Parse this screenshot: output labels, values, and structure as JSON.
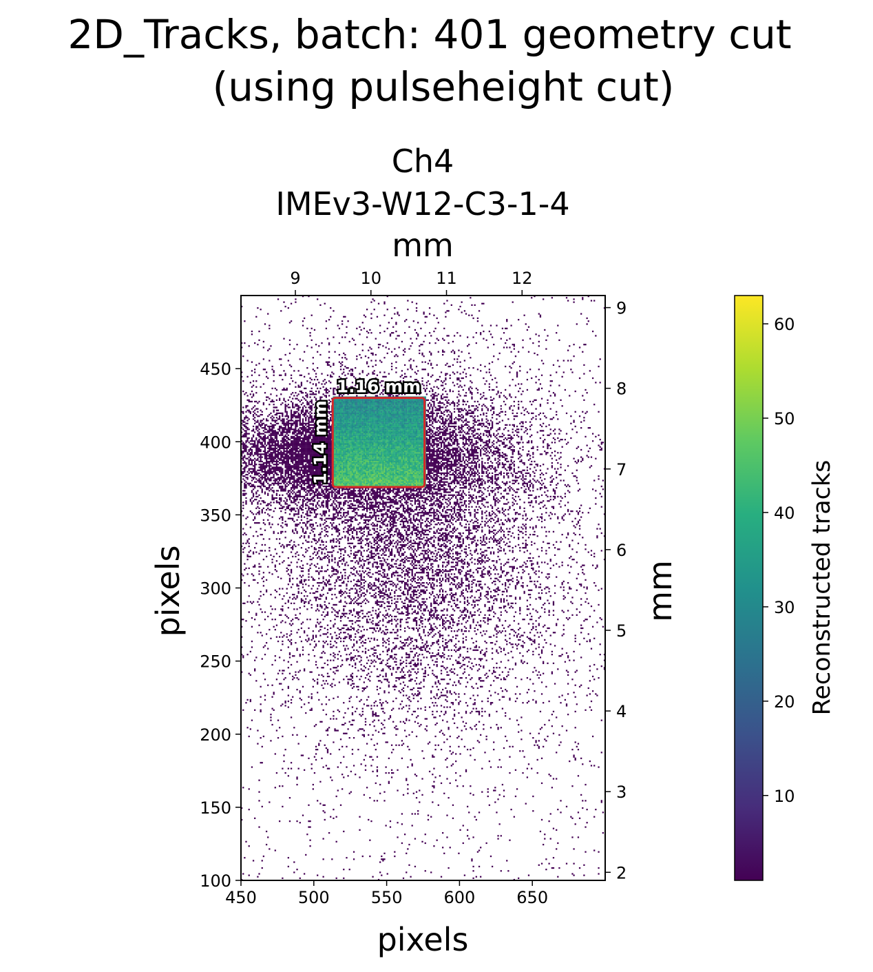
{
  "title": {
    "line1": "2D_Tracks, batch: 401 geometry cut",
    "line2": "(using pulseheight cut)"
  },
  "chart_data": {
    "type": "heatmap",
    "subtitle": {
      "channel": "Ch4",
      "device": "IMEv3-W12-C3-1-4"
    },
    "xlabel": "pixels",
    "ylabel": "pixels",
    "x2label": "mm",
    "y2label": "mm",
    "xlim": [
      450,
      700
    ],
    "ylim": [
      100,
      500
    ],
    "x_ticks": [
      450,
      500,
      550,
      600,
      650
    ],
    "y_ticks": [
      100,
      150,
      200,
      250,
      300,
      350,
      400,
      450
    ],
    "x2_ticks": [
      9,
      10,
      11,
      12
    ],
    "y2_ticks": [
      2,
      3,
      4,
      5,
      6,
      7,
      8,
      9
    ],
    "x2lim_mm": [
      8.28,
      13.1
    ],
    "y2lim_mm": [
      1.9,
      9.15
    ],
    "colorbar": {
      "label": "Reconstructed tracks",
      "ticks": [
        10,
        20,
        30,
        40,
        50,
        60
      ],
      "range": [
        1,
        63
      ],
      "colormap": "viridis"
    },
    "roi": {
      "x_range": [
        513,
        576
      ],
      "y_range": [
        369,
        430
      ],
      "width_label": "1.16 mm",
      "height_label": "1.14 mm",
      "edge_color": "#d62728"
    },
    "grid": false
  }
}
